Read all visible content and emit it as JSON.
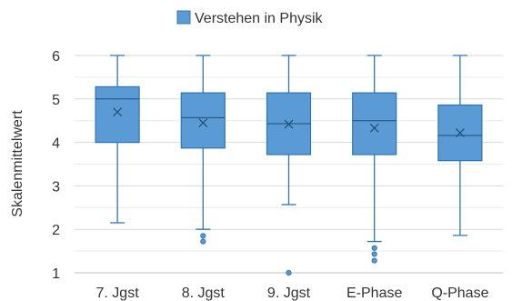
{
  "chart_data": {
    "type": "box",
    "title": "",
    "xlabel": "",
    "ylabel": "Skalenmittelwert",
    "ylim": [
      1,
      6
    ],
    "yticks": [
      1,
      2,
      3,
      4,
      5,
      6
    ],
    "grid": true,
    "legend_position": "top-center",
    "categories": [
      "7. Jgst",
      "8. Jgst",
      "9. Jgst",
      "E-Phase",
      "Q-Phase"
    ],
    "series": [
      {
        "name": "Verstehen in Physik",
        "color": "#5b9bd5",
        "edge_color": "#2e75b6",
        "boxes": [
          {
            "whisker_low": 2.15,
            "q1": 4.0,
            "median": 5.0,
            "q3": 5.28,
            "whisker_high": 6.0,
            "mean": 4.7,
            "outliers": []
          },
          {
            "whisker_low": 2.0,
            "q1": 3.87,
            "median": 4.57,
            "q3": 5.14,
            "whisker_high": 6.0,
            "mean": 4.45,
            "outliers": [
              1.85,
              1.72
            ]
          },
          {
            "whisker_low": 2.57,
            "q1": 3.72,
            "median": 4.43,
            "q3": 5.14,
            "whisker_high": 6.0,
            "mean": 4.42,
            "outliers": [
              1.0
            ]
          },
          {
            "whisker_low": 1.72,
            "q1": 3.72,
            "median": 4.5,
            "q3": 5.14,
            "whisker_high": 6.0,
            "mean": 4.33,
            "outliers": [
              1.57,
              1.43,
              1.28
            ]
          },
          {
            "whisker_low": 1.86,
            "q1": 3.58,
            "median": 4.16,
            "q3": 4.86,
            "whisker_high": 6.0,
            "mean": 4.22,
            "outliers": []
          }
        ]
      }
    ]
  }
}
